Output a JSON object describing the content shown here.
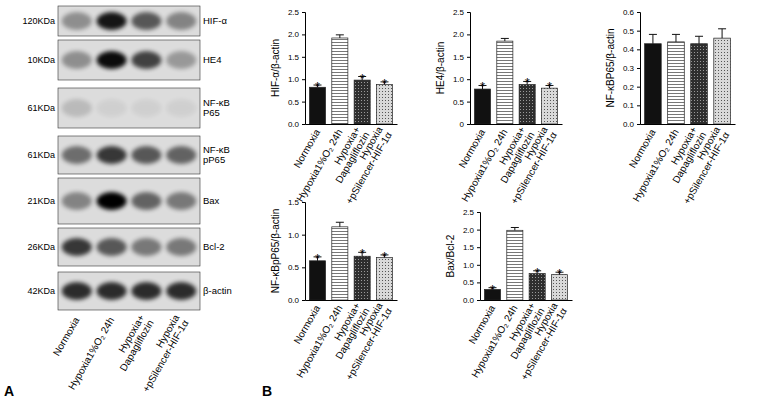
{
  "chart_data": [
    {
      "type": "bar",
      "y_label": "HIF-α/β-actin",
      "categories": [
        "Normoxia",
        "Hypoxia1%O₂ 24h",
        "Hypoxia+\nDapagliflozin",
        "Hypoxia\n+pSilencer-HIF-1α"
      ],
      "values": [
        0.82,
        1.92,
        0.98,
        0.88
      ],
      "errors": [
        0.05,
        0.07,
        0.08,
        0.06
      ],
      "significance": [
        "*",
        null,
        "*",
        "*"
      ],
      "colors": [
        "#111111",
        "#ffffff",
        "#2e2e2e",
        "#d9d9d9"
      ],
      "ylim": [
        0,
        2.5
      ],
      "yticks": [
        {
          "value": 0,
          "label": "0.0"
        },
        0.5,
        {
          "value": 1,
          "label": "1.0"
        },
        1.5,
        {
          "value": 2,
          "label": "2.0"
        },
        2.5
      ]
    },
    {
      "type": "bar",
      "y_label": "HE4/β-actin",
      "categories": [
        "Normoxia",
        "Hypoxia1%O₂ 24h",
        "Hypoxia+\nDapagliflozin",
        "Hypoxia\n+pSilencer-HIF-1α"
      ],
      "values": [
        0.78,
        1.85,
        0.88,
        0.8
      ],
      "errors": [
        0.08,
        0.06,
        0.07,
        0.06
      ],
      "significance": [
        "*",
        null,
        "*",
        "*"
      ],
      "colors": [
        "#111111",
        "#ffffff",
        "#2e2e2e",
        "#d9d9d9"
      ],
      "ylim": [
        0,
        2.5
      ],
      "yticks": [
        0,
        0.5,
        {
          "value": 1,
          "label": "1.0"
        },
        1.5,
        {
          "value": 2,
          "label": "2.0"
        },
        2.5
      ]
    },
    {
      "type": "bar",
      "y_label": "NF-κBP65/β-actin",
      "categories": [
        "Normoxia",
        "Hypoxia1%O₂ 24h",
        "Hypoxia+\nDapagliflozin",
        "Hypoxia\n+pSilencer-HIF-1α"
      ],
      "values": [
        0.43,
        0.44,
        0.43,
        0.46
      ],
      "errors": [
        0.05,
        0.04,
        0.04,
        0.05
      ],
      "significance": [
        null,
        null,
        null,
        null
      ],
      "colors": [
        "#111111",
        "#ffffff",
        "#2e2e2e",
        "#d9d9d9"
      ],
      "ylim": [
        0,
        0.6
      ],
      "yticks": [
        {
          "value": 0,
          "label": "0.0"
        },
        0.1,
        0.2,
        0.3,
        0.4,
        0.5,
        0.6
      ]
    },
    {
      "type": "bar",
      "y_label": "NF-κBpP65/β-actin",
      "categories": [
        "Normoxia",
        "Hypoxia1%O₂ 24h",
        "Hypoxia+\nDapagliflozin",
        "Hypoxia\n+pSilencer-HIF-1α"
      ],
      "values": [
        0.6,
        1.12,
        0.67,
        0.65
      ],
      "errors": [
        0.06,
        0.07,
        0.06,
        0.04
      ],
      "significance": [
        "*",
        null,
        "*",
        "*"
      ],
      "colors": [
        "#111111",
        "#ffffff",
        "#2e2e2e",
        "#d9d9d9"
      ],
      "ylim": [
        0,
        1.5
      ],
      "yticks": [
        {
          "value": 0,
          "label": "0.0"
        },
        0.5,
        {
          "value": 1,
          "label": "1.0"
        },
        1.5
      ]
    },
    {
      "type": "bar",
      "y_label": "Bax/Bcl-2",
      "categories": [
        "Normoxia",
        "Hypoxia1%O₂ 24h",
        "Hypoxia+\nDapagliflozin",
        "Hypoxia\n+pSilencer-HIF-1α"
      ],
      "values": [
        0.3,
        1.98,
        0.75,
        0.72
      ],
      "errors": [
        0.05,
        0.08,
        0.08,
        0.07
      ],
      "significance": [
        "*",
        null,
        "*",
        "*"
      ],
      "colors": [
        "#111111",
        "#ffffff",
        "#2e2e2e",
        "#d9d9d9"
      ],
      "ylim": [
        0,
        2.5
      ],
      "yticks": [
        {
          "value": 0,
          "label": "0.0"
        },
        0.5,
        {
          "value": 1,
          "label": "1.0"
        },
        1.5,
        {
          "value": 2,
          "label": "2.0"
        },
        2.5
      ]
    }
  ],
  "chart_panel_label": "B",
  "blot": {
    "panel_label": "A",
    "lanes": [
      "Normoxia",
      "Hypoxia1%O₂ 24h",
      "Hypoxia+\nDapagliflozin",
      "Hypoxia\n+pSilencer-HIF-1α"
    ],
    "rows": [
      {
        "mw": "120KDa",
        "protein": "HIF-α",
        "bands": [
          0.35,
          0.9,
          0.6,
          0.4
        ]
      },
      {
        "mw": "10KDa",
        "protein": "HE4",
        "bands": [
          0.35,
          0.95,
          0.7,
          0.3
        ]
      },
      {
        "mw": "61KDa",
        "protein": "NF-κB\nP65",
        "bands": [
          0.15,
          0.05,
          0.05,
          0.05
        ]
      },
      {
        "mw": "61KDa",
        "protein": "NF-κB\npP65",
        "bands": [
          0.5,
          0.75,
          0.6,
          0.55
        ]
      },
      {
        "mw": "21KDa",
        "protein": "Bax",
        "bands": [
          0.4,
          1,
          0.55,
          0.45
        ]
      },
      {
        "mw": "26KDa",
        "protein": "Bcl-2",
        "bands": [
          0.75,
          0.6,
          0.45,
          0.45
        ]
      },
      {
        "mw": "42KDa",
        "protein": "β-actin",
        "bands": [
          0.8,
          0.8,
          0.8,
          0.8
        ]
      }
    ]
  }
}
